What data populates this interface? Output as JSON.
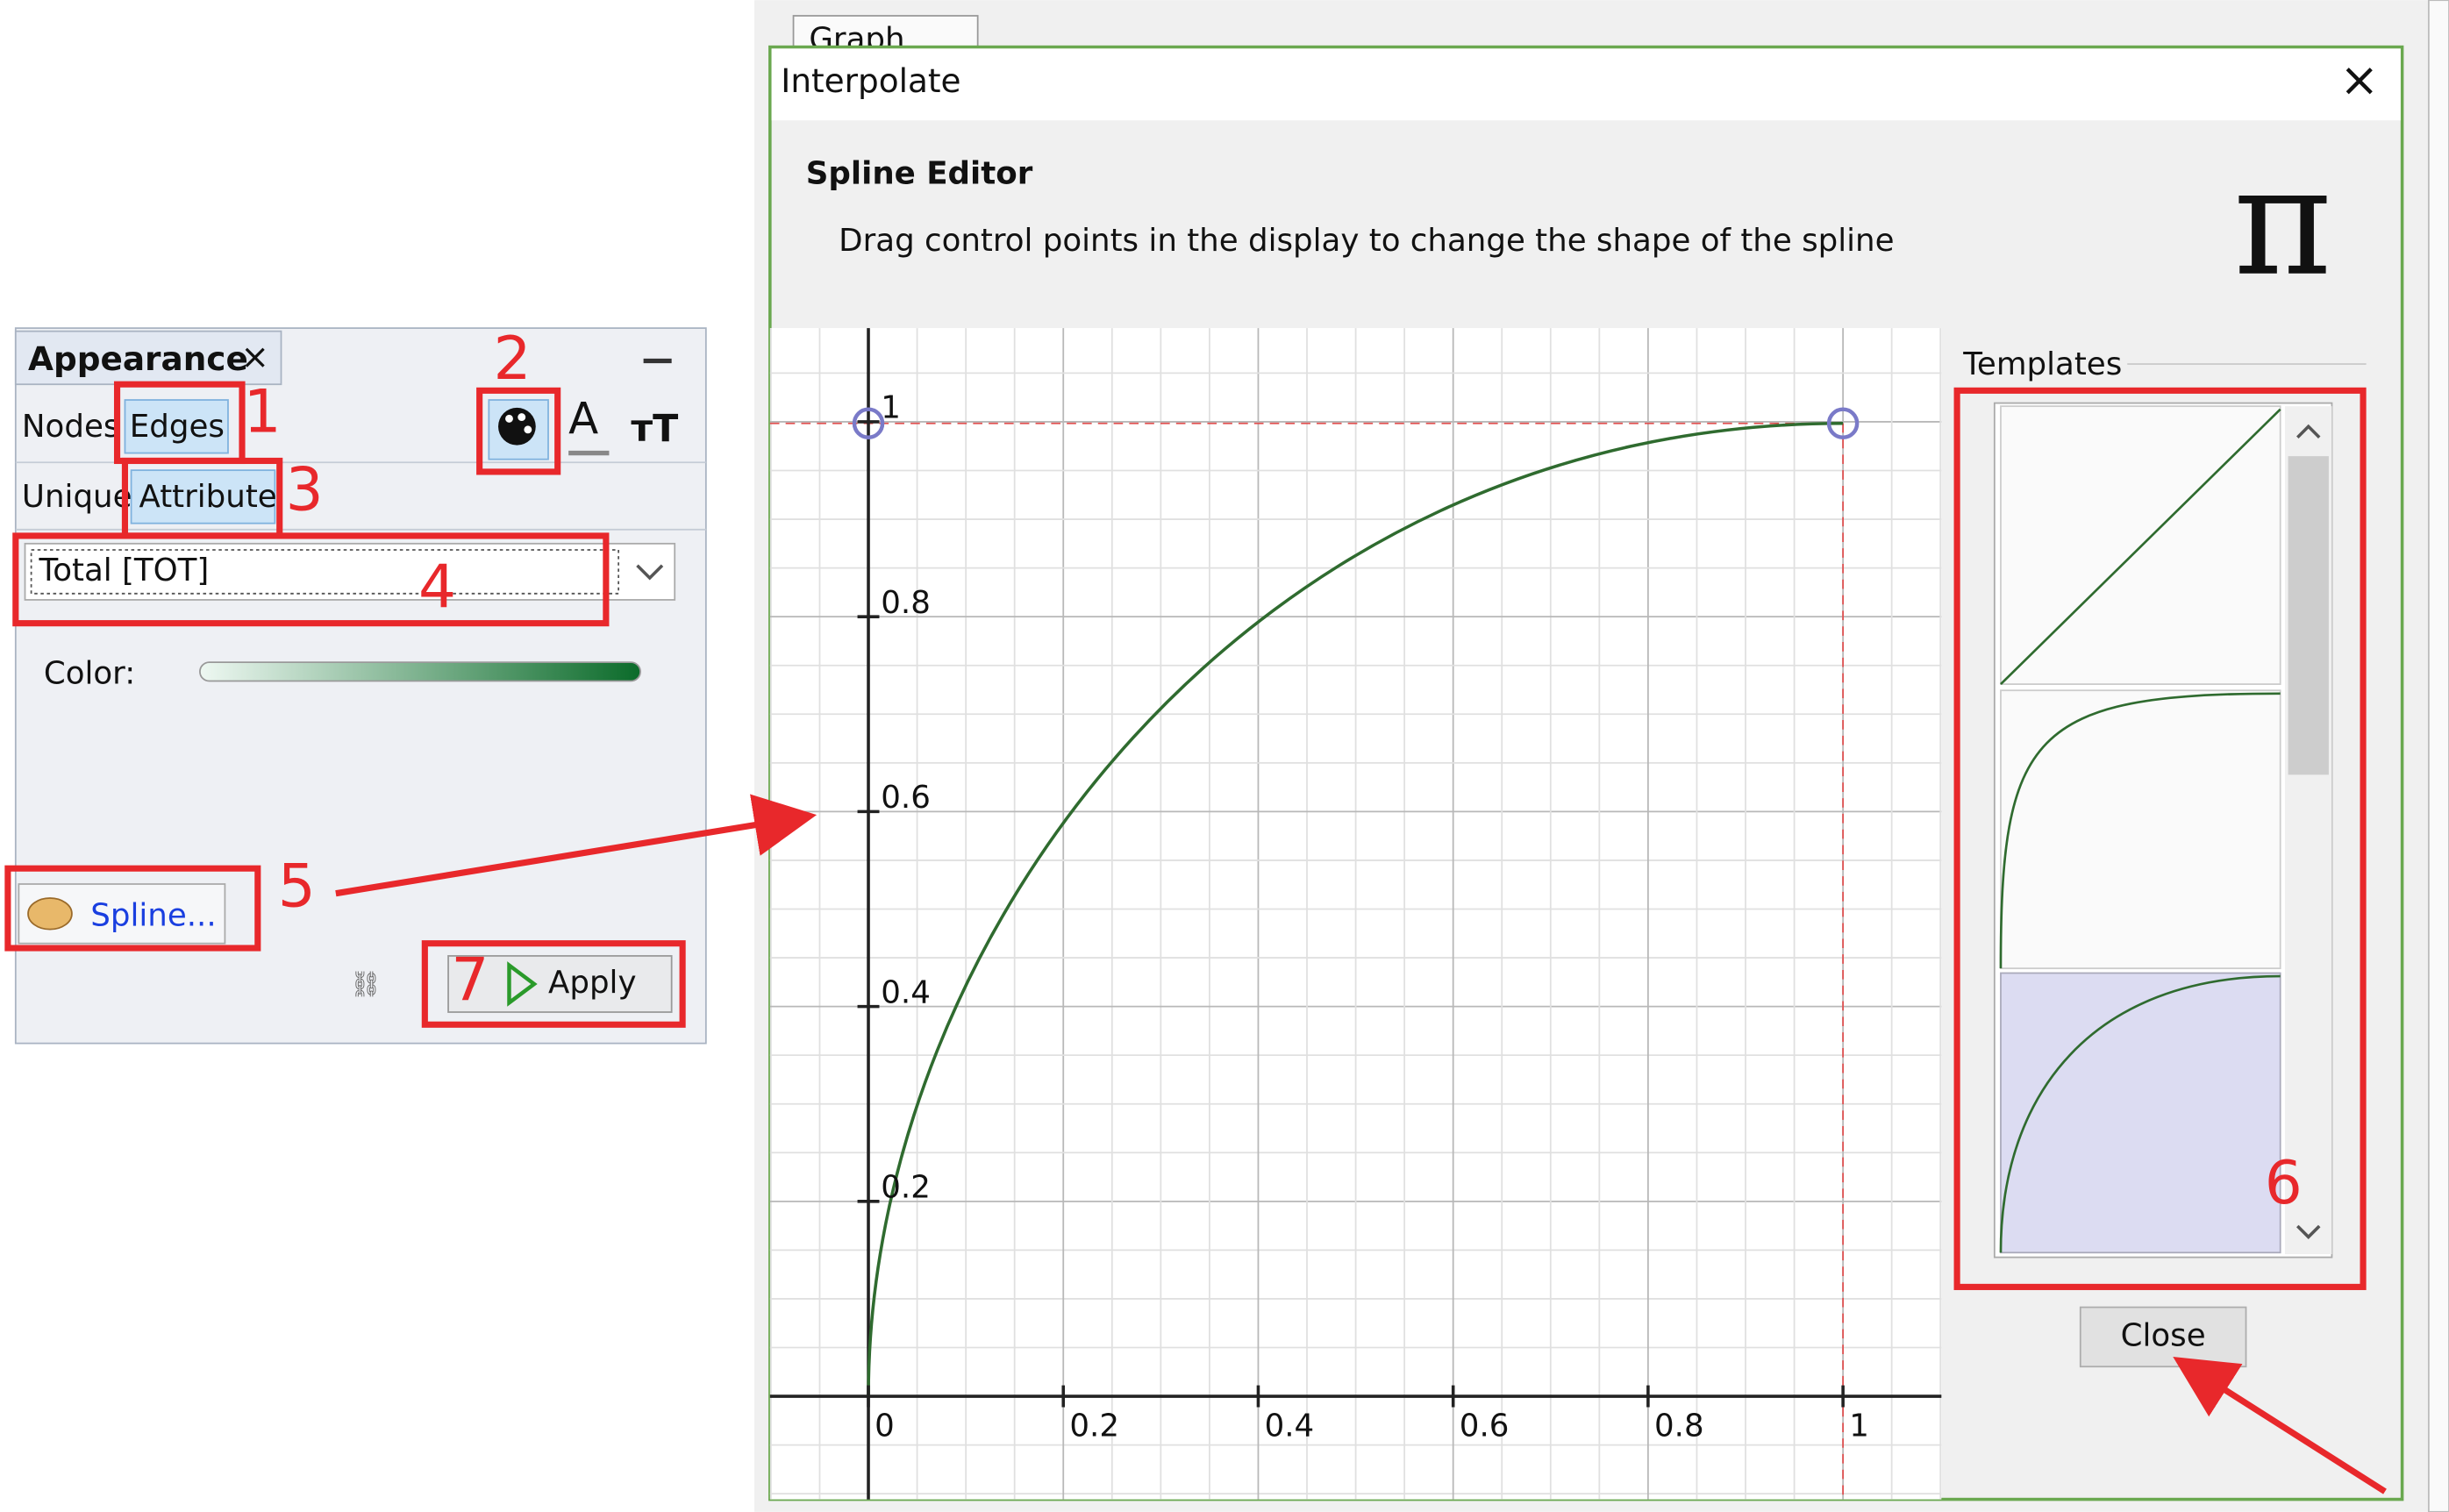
{
  "background_tab": "Graph",
  "appearance_panel": {
    "title": "Appearance",
    "tabs": [
      "Nodes",
      "Edges"
    ],
    "modes": [
      "Unique",
      "Attribute"
    ],
    "dropdown": "Total [TOT]",
    "color_label": "Color:",
    "spline_button": "Spline...",
    "apply_button": "Apply"
  },
  "annotations": [
    "1",
    "2",
    "3",
    "4",
    "5",
    "6",
    "7"
  ],
  "dialog": {
    "title": "Interpolate",
    "header": "Spline Editor",
    "description": "Drag control points in the display to change the shape of the spline",
    "x_ticks": [
      0,
      0.2,
      0.4,
      0.6,
      0.8,
      1
    ],
    "y_ticks": [
      0.2,
      0.4,
      0.6,
      0.8,
      1
    ],
    "templates_label": "Templates",
    "close_button": "Close"
  }
}
